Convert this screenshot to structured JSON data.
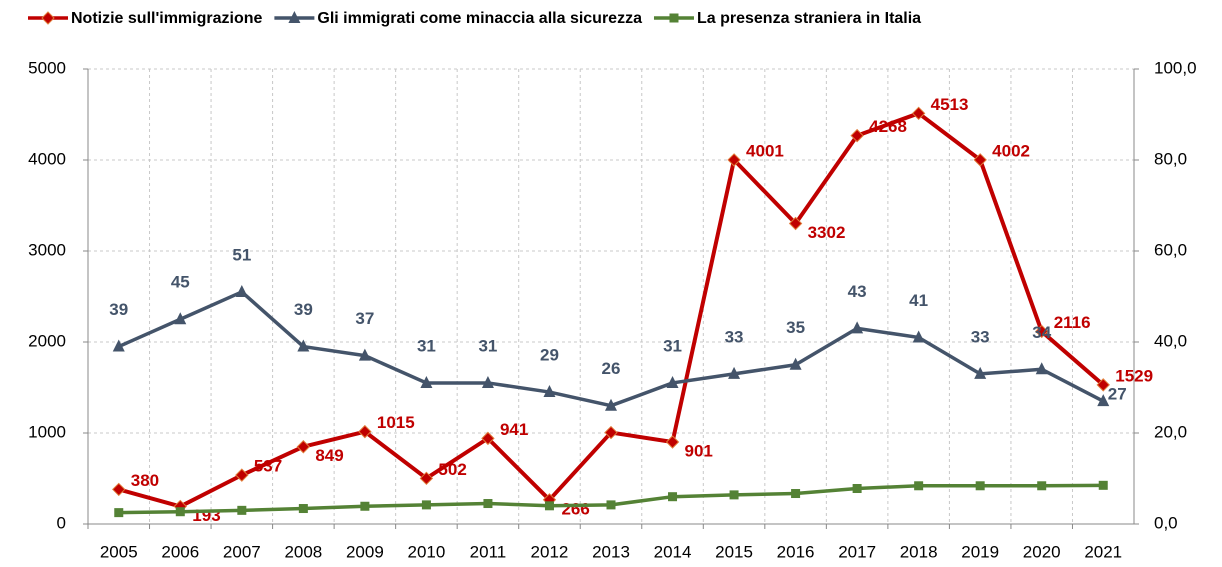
{
  "chart_data": {
    "type": "line",
    "categories": [
      "2005",
      "2006",
      "2007",
      "2008",
      "2009",
      "2010",
      "2011",
      "2012",
      "2013",
      "2014",
      "2015",
      "2016",
      "2017",
      "2018",
      "2019",
      "2020",
      "2021"
    ],
    "series": [
      {
        "name": "Notizie sull'immigrazione",
        "color": "#c00000",
        "marker": "diamond",
        "values": [
          380,
          193,
          537,
          849,
          1015,
          502,
          941,
          266,
          1005,
          901,
          4001,
          3302,
          4268,
          4513,
          4002,
          2116,
          1529
        ],
        "value_labels": [
          "380",
          "193",
          "537",
          "849",
          "1015",
          "502",
          "941",
          "266",
          null,
          "901",
          "4001",
          "3302",
          "4268",
          "4513",
          "4002",
          "2116",
          "1529"
        ]
      },
      {
        "name": "Gli immigrati come minaccia alla sicurezza",
        "color": "#44546a",
        "marker": "triangle",
        "axis": "y2",
        "values": [
          39,
          45,
          51,
          39,
          37,
          31,
          31,
          29,
          26,
          31,
          33,
          35,
          43,
          41,
          33,
          34,
          27
        ],
        "value_labels": [
          "39",
          "45",
          "51",
          "39",
          "37",
          "31",
          "31",
          "29",
          "26",
          "31",
          "33",
          "35",
          "43",
          "41",
          "33",
          "34",
          "27"
        ]
      },
      {
        "name": "La presenza straniera in Italia",
        "color": "#548235",
        "marker": "square",
        "axis": "y2",
        "values": [
          2.5,
          2.7,
          3.0,
          3.4,
          3.9,
          4.2,
          4.5,
          4.0,
          4.2,
          6.0,
          6.4,
          6.7,
          7.8,
          8.4,
          8.4,
          8.4,
          8.5
        ]
      }
    ],
    "ylim": [
      0,
      5000
    ],
    "yticks": [
      0,
      1000,
      2000,
      3000,
      4000,
      5000
    ],
    "y2lim": [
      0,
      100
    ],
    "y2ticks": [
      {
        "value": 0,
        "label": "0,0"
      },
      {
        "value": 20,
        "label": "20,0"
      },
      {
        "value": 40,
        "label": "40,0"
      },
      {
        "value": 60,
        "label": "60,0"
      },
      {
        "value": 80,
        "label": "80,0"
      },
      {
        "value": 100,
        "label": "100,0"
      }
    ],
    "grid": true,
    "legend": "top"
  }
}
